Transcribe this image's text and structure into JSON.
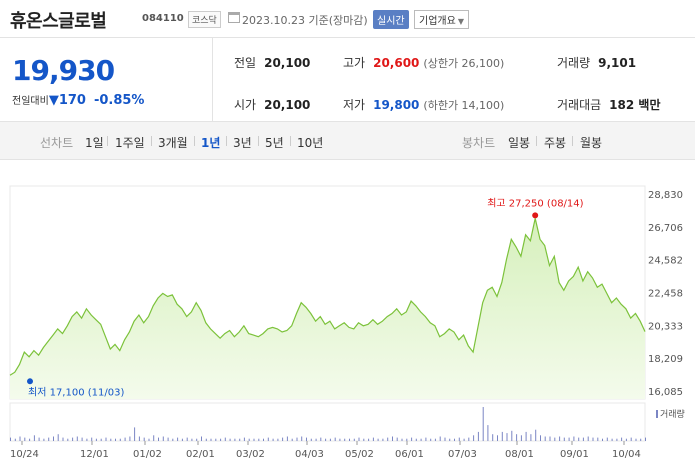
{
  "header": {
    "stock_name": "휴온스글로벌",
    "stock_code": "084110",
    "market": "코스닥",
    "date": "2023.10.23 기준(장마감)",
    "realtime_label": "실시간",
    "company_label": "기업개요"
  },
  "price": {
    "current": "19,930",
    "change_label": "전일대비",
    "change_arrow": "▼",
    "change_value": "170",
    "change_pct": "-0.85%"
  },
  "info": {
    "prev_close_label": "전일",
    "prev_close": "20,100",
    "high_label": "고가",
    "high": "20,600",
    "upper_limit": "(상한가 26,100)",
    "volume_label": "거래량",
    "volume": "9,101",
    "open_label": "시가",
    "open": "20,100",
    "low_label": "저가",
    "low": "19,800",
    "lower_limit": "(하한가 14,100)",
    "amount_label": "거래대금",
    "amount": "182 백만"
  },
  "periods": {
    "line_label": "선차트",
    "line_items": [
      "1일",
      "1주일",
      "3개월",
      "1년",
      "3년",
      "5년",
      "10년"
    ],
    "active": "1년",
    "candle_label": "봉차트",
    "candle_items": [
      "일봉",
      "주봉",
      "월봉"
    ]
  },
  "chart_data": {
    "type": "area",
    "title": "",
    "x_tick_labels": [
      "10/24",
      "12/01",
      "01/02",
      "02/01",
      "03/02",
      "04/03",
      "05/02",
      "06/01",
      "07/03",
      "08/01",
      "09/01",
      "10/04"
    ],
    "y_tick_labels": [
      "28,830",
      "26,706",
      "24,582",
      "22,458",
      "20,333",
      "18,209",
      "16,085"
    ],
    "ylim": [
      16085,
      28830
    ],
    "series": [
      {
        "values": [
          17100,
          17300,
          17800,
          18600,
          18300,
          18700,
          18400,
          18900,
          19300,
          19700,
          20100,
          19800,
          20300,
          20900,
          21200,
          20800,
          21400,
          21000,
          20700,
          20400,
          19600,
          18800,
          19100,
          18700,
          19400,
          19900,
          20600,
          21000,
          20500,
          20900,
          21600,
          22100,
          22400,
          22200,
          22300,
          21700,
          21400,
          20900,
          21200,
          21800,
          21300,
          20500,
          20100,
          19800,
          19500,
          19800,
          20000,
          19600,
          19900,
          20300,
          19800,
          19700,
          19600,
          19800,
          20100,
          20200,
          20100,
          19900,
          20000,
          20300,
          21100,
          21800,
          21500,
          21100,
          20600,
          20900,
          20400,
          20600,
          20100,
          20300,
          20500,
          20200,
          20100,
          20500,
          20300,
          20400,
          20700,
          20400,
          20600,
          20900,
          21100,
          21400,
          21000,
          21200,
          21900,
          21600,
          21200,
          20900,
          20500,
          20300,
          19600,
          19800,
          20100,
          19900,
          19400,
          19700,
          19000,
          18600,
          20200,
          21800,
          22600,
          22800,
          22200,
          23100,
          24600,
          25900,
          25400,
          24800,
          26200,
          25800,
          27250,
          25900,
          25500,
          24200,
          24800,
          23100,
          22600,
          23200,
          23500,
          24100,
          23200,
          23800,
          23400,
          22800,
          23000,
          22400,
          21800,
          22100,
          21700,
          21400,
          20800,
          21100,
          20600,
          19930
        ]
      }
    ],
    "volume": [
      3,
      2,
      4,
      3,
      2,
      5,
      3,
      2,
      3,
      4,
      6,
      3,
      2,
      3,
      4,
      3,
      2,
      3,
      2,
      2,
      3,
      2,
      2,
      2,
      3,
      4,
      12,
      4,
      3,
      2,
      5,
      3,
      4,
      3,
      2,
      3,
      2,
      3,
      2,
      2,
      4,
      2,
      2,
      2,
      2,
      3,
      2,
      2,
      2,
      3,
      2,
      2,
      2,
      2,
      3,
      2,
      2,
      3,
      4,
      2,
      3,
      4,
      3,
      2,
      2,
      3,
      2,
      2,
      3,
      2,
      2,
      2,
      2,
      3,
      2,
      2,
      3,
      2,
      2,
      3,
      4,
      3,
      2,
      2,
      3,
      2,
      2,
      3,
      2,
      2,
      4,
      3,
      2,
      2,
      3,
      2,
      3,
      5,
      8,
      30,
      14,
      6,
      5,
      8,
      7,
      9,
      6,
      5,
      8,
      6,
      10,
      5,
      4,
      4,
      3,
      4,
      3,
      3,
      4,
      3,
      3,
      4,
      3,
      3,
      2,
      3,
      2,
      2,
      3,
      2,
      3,
      2,
      2,
      3
    ],
    "volume_label": "거래량",
    "annotations": {
      "high": {
        "text": "최고 27,250 (08/14)"
      },
      "low": {
        "text": "최저 17,100 (11/03)"
      }
    }
  },
  "colors": {
    "price_down": "#1456c8",
    "price_up": "#e01818",
    "line": "#7cc23b",
    "fill_top": "#d6f0bc",
    "fill_bottom": "#f4fbec",
    "volume": "#7b86c4"
  }
}
